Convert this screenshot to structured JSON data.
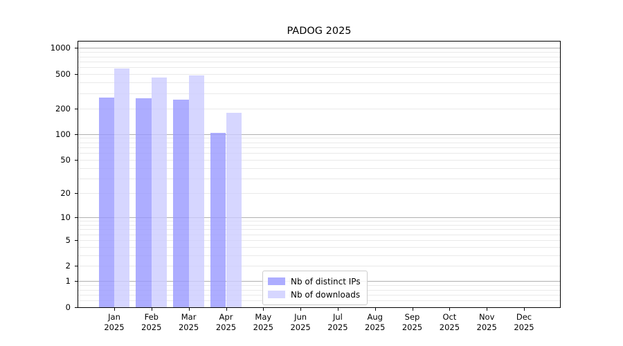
{
  "chart_data": {
    "type": "bar",
    "title": "PADOG 2025",
    "scale": "log1p",
    "ylim": [
      0,
      1190
    ],
    "y_ticks": [
      0,
      1,
      2,
      5,
      10,
      20,
      50,
      100,
      200,
      500,
      1000
    ],
    "categories": [
      "Jan",
      "Feb",
      "Mar",
      "Apr",
      "May",
      "Jun",
      "Jul",
      "Aug",
      "Sep",
      "Oct",
      "Nov",
      "Dec"
    ],
    "category_year": "2025",
    "series": [
      {
        "name": "Nb of distinct IPs",
        "color": "rgba(153,153,255,0.8)",
        "hex": "#9999ff",
        "values": [
          265,
          262,
          252,
          104,
          0,
          0,
          0,
          0,
          0,
          0,
          0,
          0
        ]
      },
      {
        "name": "Nb of downloads",
        "color": "rgba(204,204,255,0.8)",
        "hex": "#ccccff",
        "values": [
          580,
          455,
          485,
          176,
          0,
          0,
          0,
          0,
          0,
          0,
          0,
          0
        ]
      }
    ],
    "grid": {
      "major_color": "#b0b0b0",
      "minor_color": "#e9e9e9",
      "vertical": false
    },
    "axis_color": "#000000",
    "legend_position": "inside-bottom-center"
  }
}
